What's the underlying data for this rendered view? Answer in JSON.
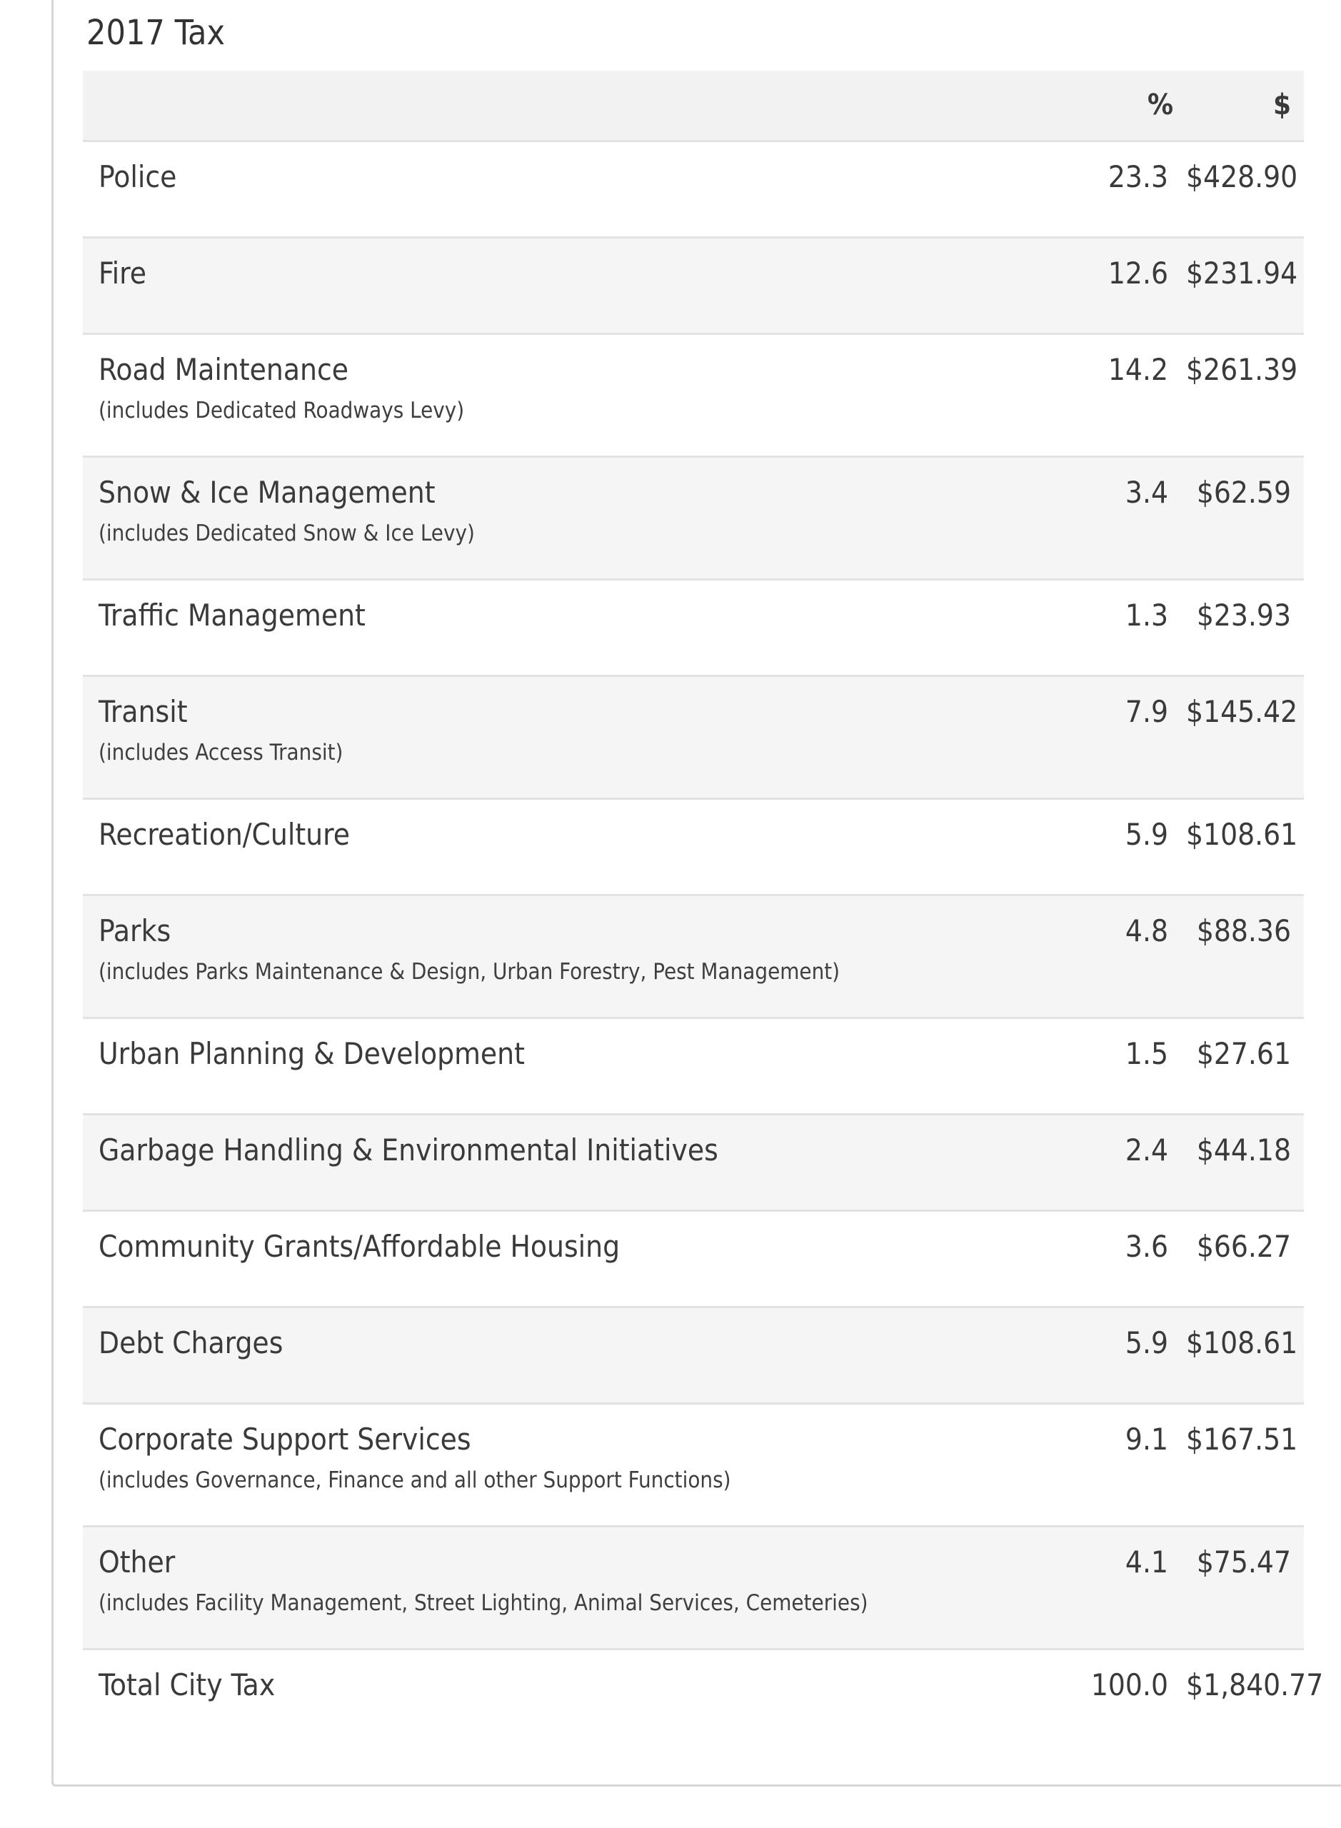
{
  "title": "2017 Tax",
  "table": {
    "headers": {
      "category": "",
      "percent": "%",
      "amount": "$"
    },
    "rows": [
      {
        "label": "Police",
        "note": "",
        "percent": "23.3",
        "amount": "$428.90"
      },
      {
        "label": "Fire",
        "note": "",
        "percent": "12.6",
        "amount": "$231.94"
      },
      {
        "label": "Road Maintenance",
        "note": "(includes Dedicated Roadways Levy)",
        "percent": "14.2",
        "amount": "$261.39"
      },
      {
        "label": "Snow & Ice Management",
        "note": "(includes Dedicated Snow & Ice Levy)",
        "percent": "3.4",
        "amount": "$62.59"
      },
      {
        "label": "Traffic Management",
        "note": "",
        "percent": "1.3",
        "amount": "$23.93"
      },
      {
        "label": "Transit",
        "note": "(includes Access Transit)",
        "percent": "7.9",
        "amount": "$145.42"
      },
      {
        "label": "Recreation/Culture",
        "note": "",
        "percent": "5.9",
        "amount": "$108.61"
      },
      {
        "label": "Parks",
        "note": "(includes Parks Maintenance & Design, Urban Forestry, Pest Management)",
        "percent": "4.8",
        "amount": "$88.36"
      },
      {
        "label": "Urban Planning & Development",
        "note": "",
        "percent": "1.5",
        "amount": "$27.61"
      },
      {
        "label": "Garbage Handling & Environmental Initiatives",
        "note": "",
        "percent": "2.4",
        "amount": "$44.18"
      },
      {
        "label": "Community Grants/Affordable Housing",
        "note": "",
        "percent": "3.6",
        "amount": "$66.27"
      },
      {
        "label": "Debt Charges",
        "note": "",
        "percent": "5.9",
        "amount": "$108.61"
      },
      {
        "label": "Corporate Support Services",
        "note": "(includes Governance, Finance and all other Support Functions)",
        "percent": "9.1",
        "amount": "$167.51"
      },
      {
        "label": "Other",
        "note": "(includes Facility Management, Street Lighting, Animal Services, Cemeteries)",
        "percent": "4.1",
        "amount": "$75.47"
      }
    ],
    "total": {
      "label": "Total City Tax",
      "percent": "100.0",
      "amount": "$1,840.77"
    }
  }
}
